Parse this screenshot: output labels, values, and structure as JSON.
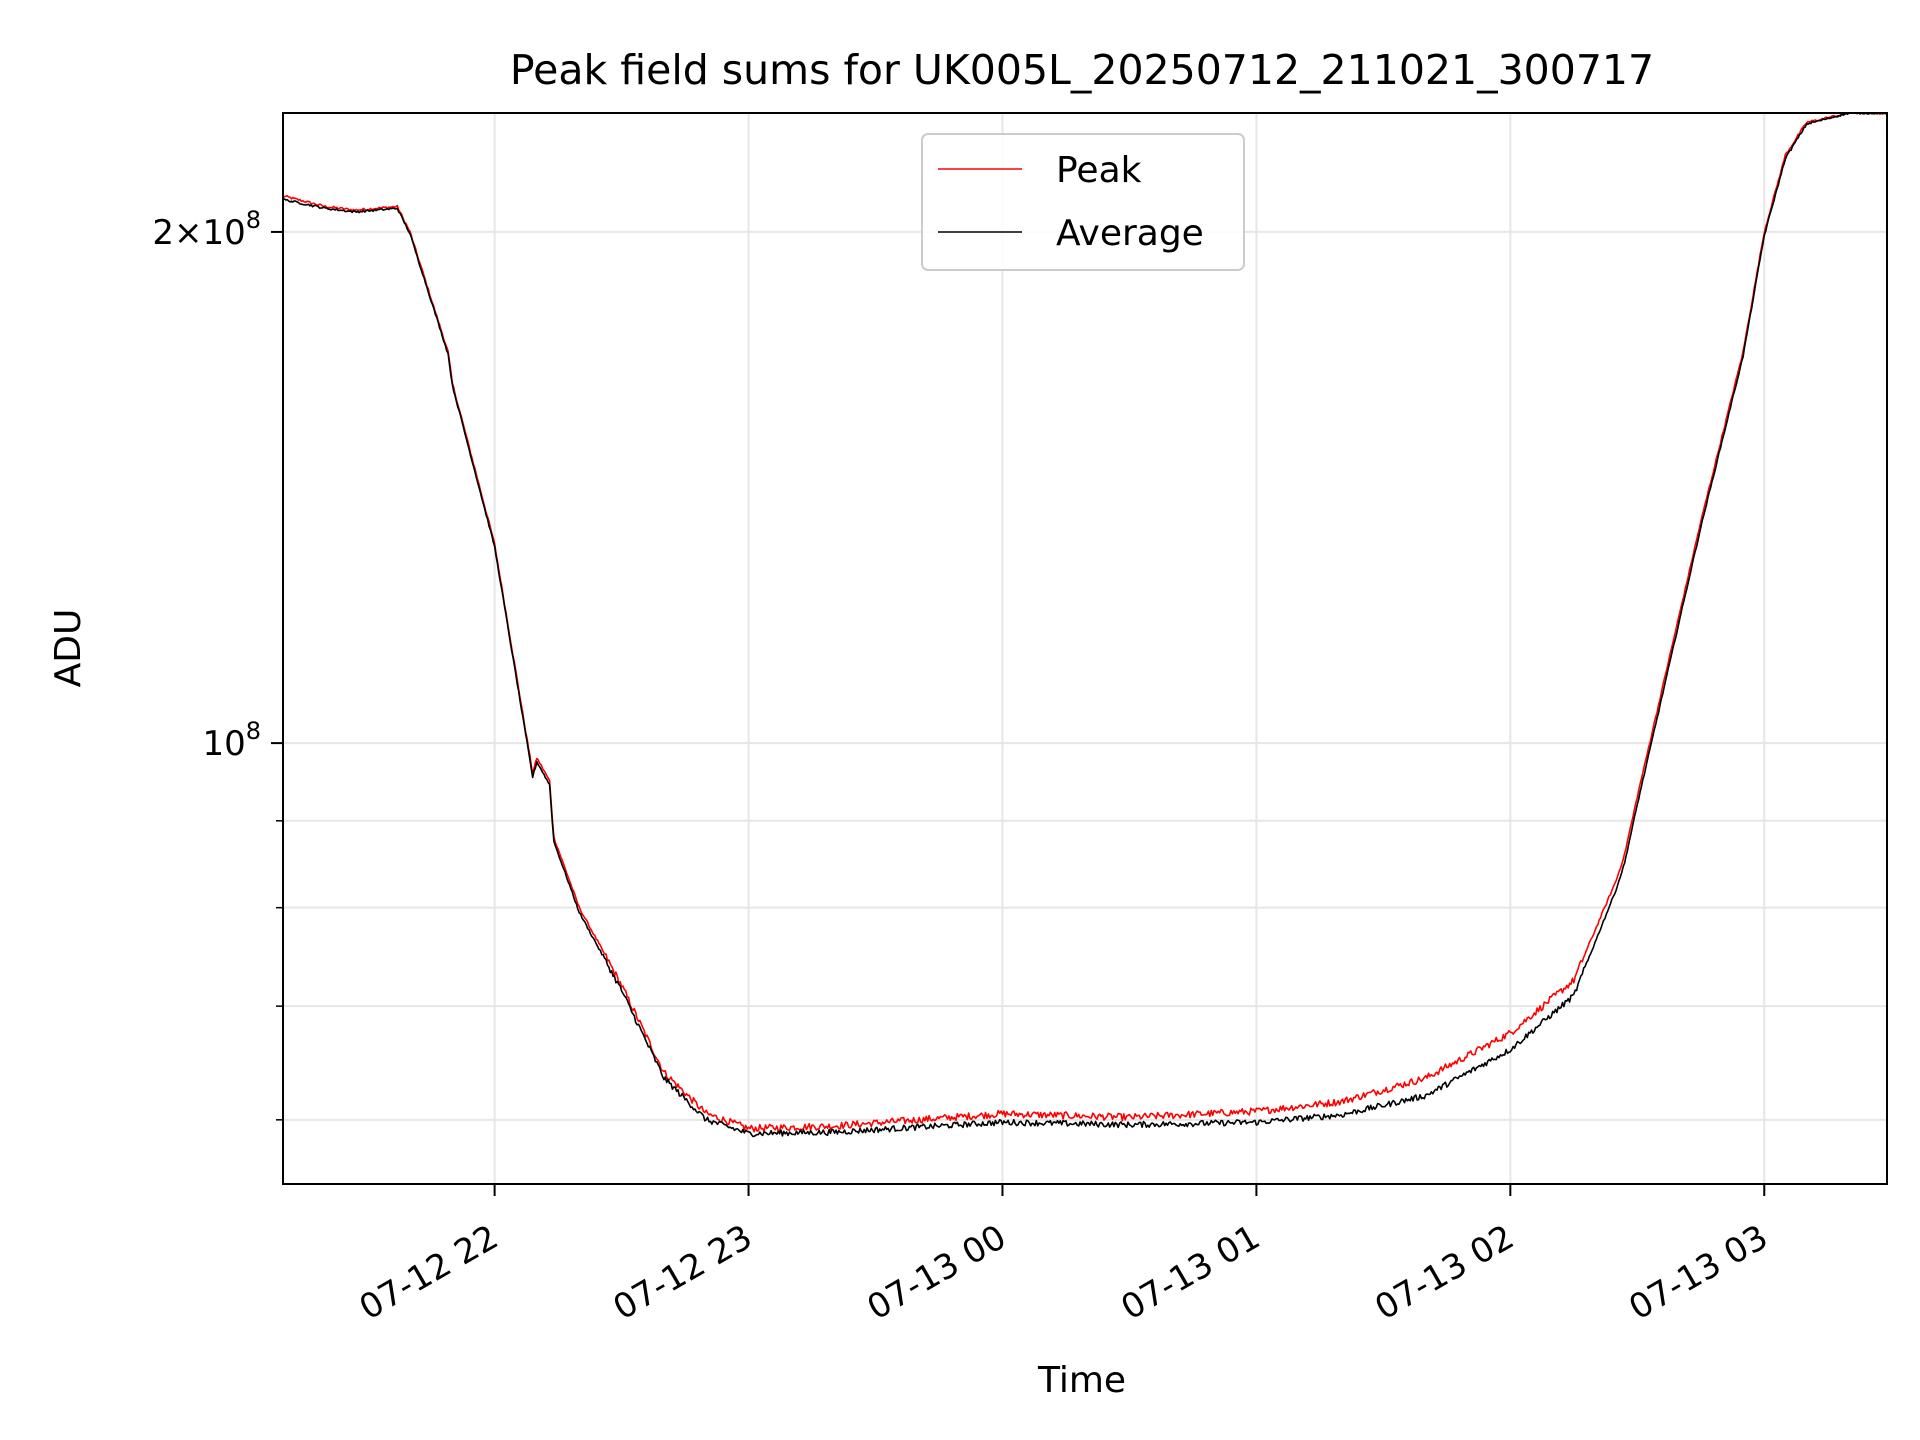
{
  "chart_data": {
    "type": "line",
    "title": "Peak field sums for UK005L_20250712_211021_300717",
    "xlabel": "Time",
    "ylabel": "ADU",
    "x_axis": {
      "kind": "datetime",
      "range": [
        "2025-07-12 21:10",
        "2025-07-13 03:29"
      ],
      "ticks": [
        {
          "value": "2025-07-12 22:00",
          "label": "07-12 22"
        },
        {
          "value": "2025-07-12 23:00",
          "label": "07-12 23"
        },
        {
          "value": "2025-07-13 00:00",
          "label": "07-13 00"
        },
        {
          "value": "2025-07-13 01:00",
          "label": "07-13 01"
        },
        {
          "value": "2025-07-13 02:00",
          "label": "07-13 02"
        },
        {
          "value": "2025-07-13 03:00",
          "label": "07-13 03"
        }
      ]
    },
    "y_axis": {
      "scale": "log",
      "range": [
        55000000,
        235000000
      ],
      "major_ticks": [
        {
          "value": 100000000,
          "mantissa": "",
          "exponent": "8"
        },
        {
          "value": 200000000,
          "mantissa": "2×",
          "exponent": "8"
        }
      ],
      "minor_ticks": [
        60000000,
        70000000,
        80000000,
        90000000
      ]
    },
    "grid": true,
    "legend_position": "top-center",
    "series": [
      {
        "name": "Peak",
        "color": "#ff0000",
        "x": [
          "2025-07-12 21:10",
          "2025-07-12 21:20",
          "2025-07-12 21:27",
          "2025-07-12 21:37",
          "2025-07-12 21:40",
          "2025-07-12 21:49",
          "2025-07-12 21:50",
          "2025-07-12 22:00",
          "2025-07-12 22:09",
          "2025-07-12 22:10",
          "2025-07-12 22:13",
          "2025-07-12 22:14",
          "2025-07-12 22:20",
          "2025-07-12 22:30",
          "2025-07-12 22:40",
          "2025-07-12 22:50",
          "2025-07-12 23:00",
          "2025-07-12 23:20",
          "2025-07-12 23:40",
          "2025-07-13 00:00",
          "2025-07-13 00:30",
          "2025-07-13 01:00",
          "2025-07-13 01:20",
          "2025-07-13 01:40",
          "2025-07-13 02:00",
          "2025-07-13 02:15",
          "2025-07-13 02:25",
          "2025-07-13 02:27",
          "2025-07-13 02:30",
          "2025-07-13 02:45",
          "2025-07-13 02:55",
          "2025-07-13 03:00",
          "2025-07-13 03:05",
          "2025-07-13 03:10",
          "2025-07-13 03:20",
          "2025-07-13 03:29"
        ],
        "y": [
          210000000,
          207000000,
          206000000,
          207000000,
          200000000,
          170000000,
          163000000,
          131000000,
          96000000,
          98000000,
          95000000,
          88000000,
          80000000,
          72000000,
          64000000,
          60500000,
          59300000,
          59500000,
          60000000,
          60500000,
          60200000,
          60700000,
          61500000,
          63500000,
          67500000,
          72500000,
          83000000,
          86000000,
          93000000,
          135000000,
          170000000,
          200000000,
          222000000,
          232000000,
          235000000,
          235000000
        ]
      },
      {
        "name": "Average",
        "color": "#000000",
        "x": [
          "2025-07-12 21:10",
          "2025-07-12 21:20",
          "2025-07-12 21:27",
          "2025-07-12 21:37",
          "2025-07-12 21:40",
          "2025-07-12 21:49",
          "2025-07-12 21:50",
          "2025-07-12 22:00",
          "2025-07-12 22:09",
          "2025-07-12 22:10",
          "2025-07-12 22:13",
          "2025-07-12 22:14",
          "2025-07-12 22:20",
          "2025-07-12 22:30",
          "2025-07-12 22:40",
          "2025-07-12 22:50",
          "2025-07-12 23:00",
          "2025-07-12 23:20",
          "2025-07-12 23:40",
          "2025-07-13 00:00",
          "2025-07-13 00:30",
          "2025-07-13 01:00",
          "2025-07-13 01:20",
          "2025-07-13 01:40",
          "2025-07-13 02:00",
          "2025-07-13 02:15",
          "2025-07-13 02:25",
          "2025-07-13 02:27",
          "2025-07-13 02:30",
          "2025-07-13 02:45",
          "2025-07-13 02:55",
          "2025-07-13 03:00",
          "2025-07-13 03:05",
          "2025-07-13 03:10",
          "2025-07-13 03:20",
          "2025-07-13 03:29"
        ],
        "y": [
          209000000,
          206500000,
          205500000,
          206500000,
          199500000,
          169500000,
          162500000,
          130500000,
          95500000,
          97500000,
          94500000,
          87500000,
          79500000,
          71500000,
          63500000,
          60000000,
          58900000,
          59000000,
          59400000,
          59800000,
          59600000,
          59800000,
          60400000,
          62000000,
          66000000,
          71000000,
          82000000,
          85000000,
          92000000,
          134000000,
          169000000,
          199000000,
          221000000,
          231500000,
          235000000,
          235000000
        ]
      }
    ]
  }
}
